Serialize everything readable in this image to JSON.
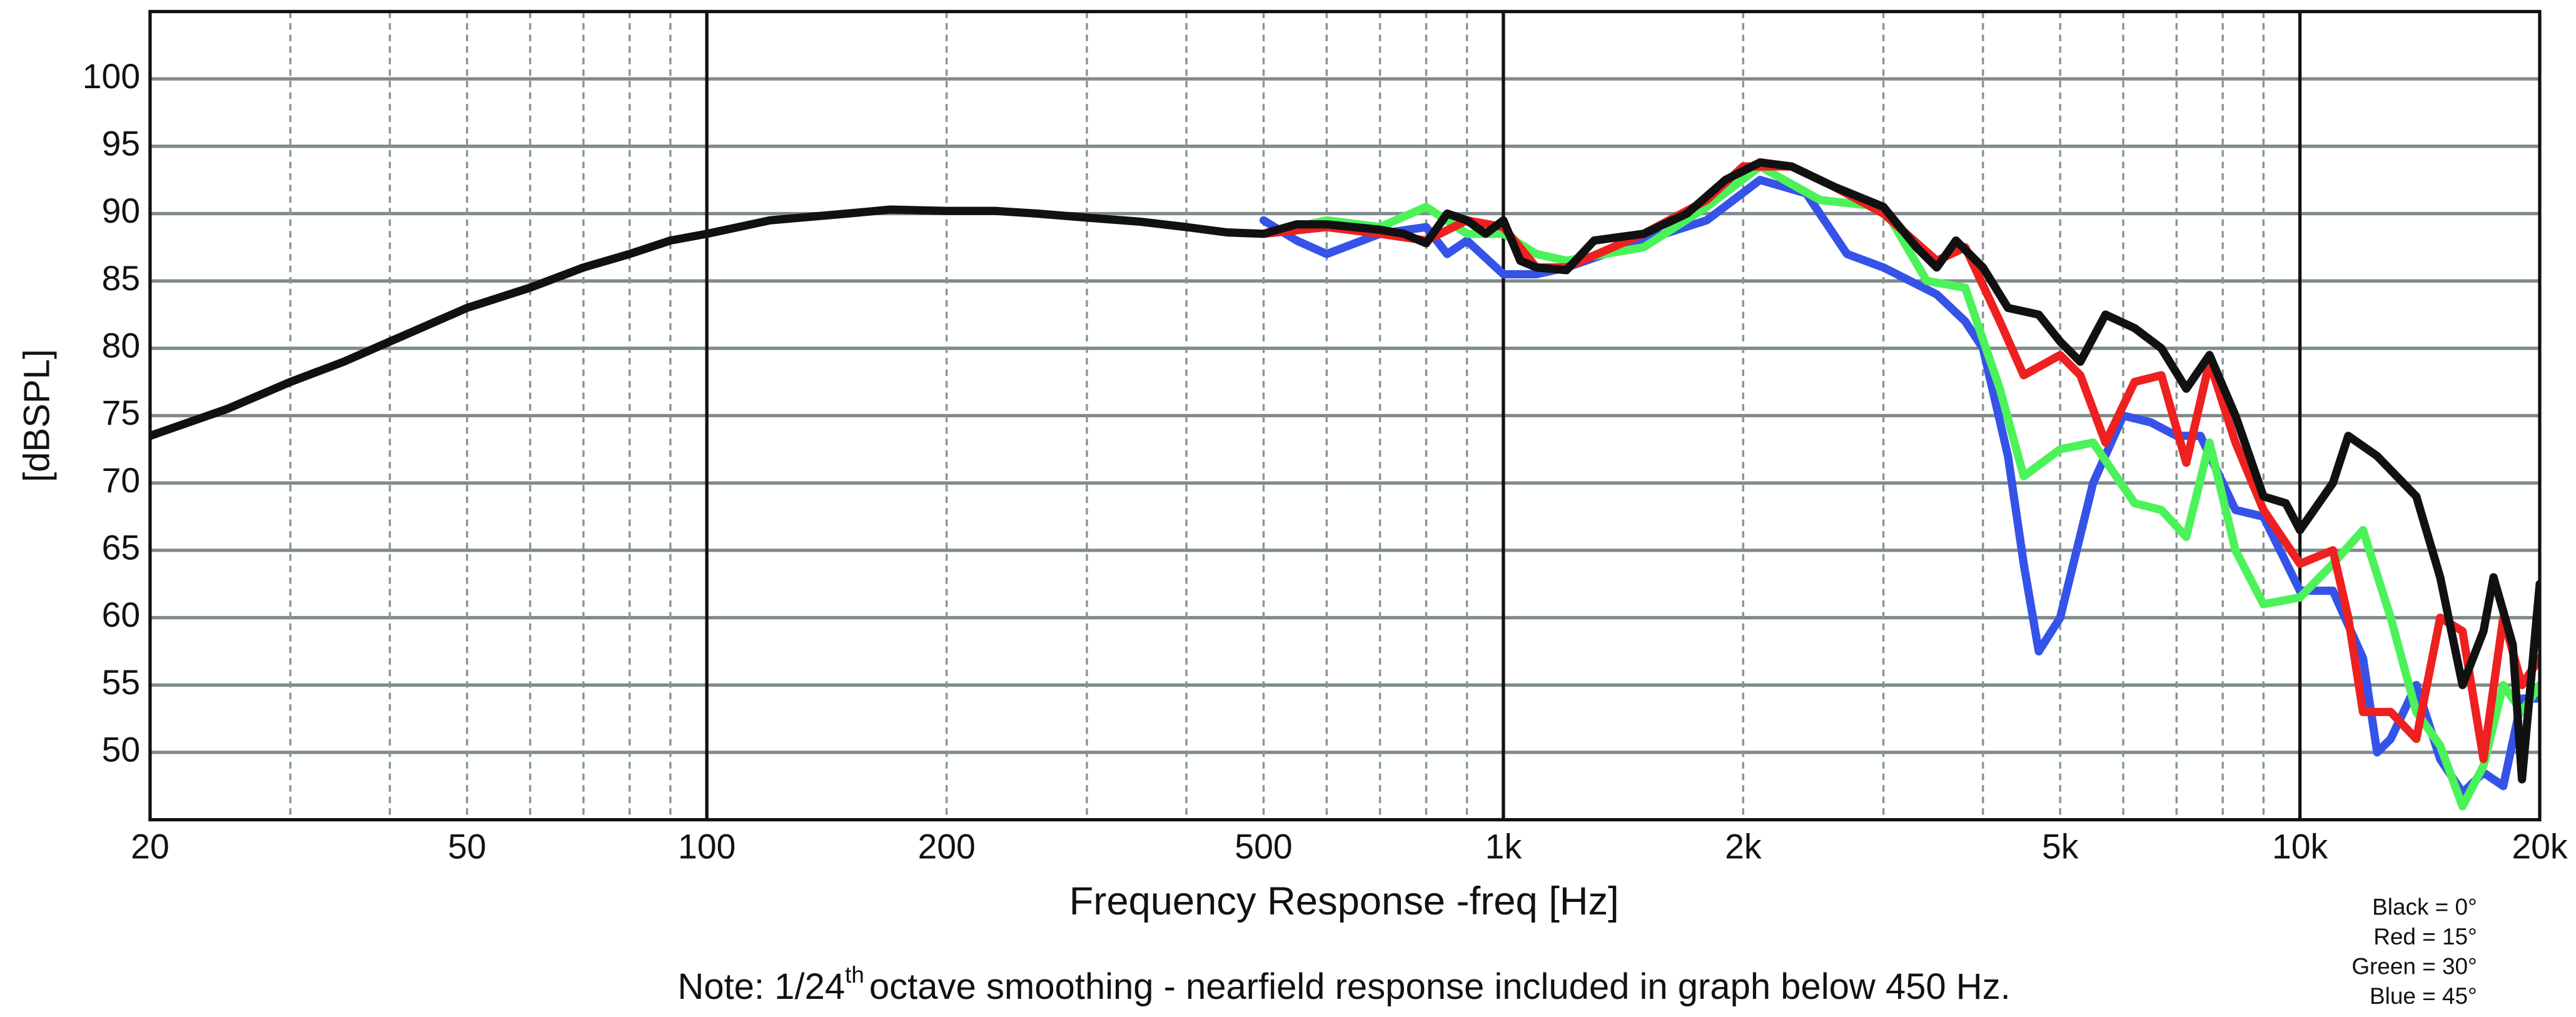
{
  "chart_data": {
    "type": "line",
    "x_label": "Frequency Response -freq [Hz]",
    "y_label": "[dBSPL]",
    "note": {
      "prefix": "Note: 1/24",
      "superscript": "th",
      "suffix": "octave smoothing - nearfield response included in graph below 450 Hz."
    },
    "log_x": true,
    "grid": true,
    "xlim": [
      20,
      20000
    ],
    "ylim": [
      45,
      105
    ],
    "xticks": [
      20,
      50,
      100,
      200,
      500,
      {
        "value": 1000,
        "label": "1k"
      },
      {
        "value": 2000,
        "label": "2k"
      },
      {
        "value": 5000,
        "label": "5k"
      },
      {
        "value": 10000,
        "label": "10k"
      },
      {
        "value": 20000,
        "label": "20k"
      }
    ],
    "x_minor_grid": [
      30,
      40,
      50,
      60,
      70,
      80,
      90,
      200,
      300,
      400,
      500,
      600,
      700,
      800,
      900,
      2000,
      3000,
      4000,
      5000,
      6000,
      7000,
      8000,
      9000
    ],
    "x_major_grid": [
      100,
      1000,
      10000
    ],
    "yticks": [
      50,
      55,
      60,
      65,
      70,
      75,
      80,
      85,
      90,
      95,
      100
    ],
    "legend_position": "lower right",
    "series": [
      {
        "name": "Blue = 45°",
        "color": "#3553e8",
        "x": [
          500,
          550,
          600,
          700,
          800,
          850,
          900,
          1000,
          1100,
          1200,
          1500,
          1800,
          2100,
          2400,
          2700,
          3000,
          3500,
          3800,
          4000,
          4300,
          4500,
          4700,
          5000,
          5500,
          6000,
          6500,
          7000,
          7500,
          8300,
          9000,
          10000,
          11000,
          12000,
          12500,
          13000,
          14000,
          15000,
          16000,
          17000,
          18000,
          19000,
          20000
        ],
        "values": [
          89.5,
          88,
          87,
          88.5,
          89,
          87,
          88,
          85.5,
          85.5,
          86,
          88,
          89.5,
          92.5,
          91.5,
          87,
          86,
          84,
          82,
          80,
          72,
          64,
          57.5,
          60,
          70,
          75,
          74.5,
          73.5,
          73.5,
          68,
          67.5,
          62,
          62,
          57,
          50,
          51,
          55,
          49.5,
          47,
          48.5,
          47.5,
          54,
          54
        ]
      },
      {
        "name": "Green = 30°",
        "color": "#4cf25a",
        "x": [
          500,
          600,
          700,
          800,
          900,
          1000,
          1100,
          1200,
          1500,
          1800,
          2100,
          2500,
          3000,
          3400,
          3800,
          4200,
          4500,
          5000,
          5500,
          6200,
          6700,
          7200,
          7700,
          8300,
          9000,
          10000,
          11000,
          12000,
          13000,
          14000,
          15000,
          16000,
          17000,
          18000,
          19000,
          20000
        ],
        "values": [
          88.5,
          89.5,
          89,
          90.5,
          88.5,
          88.5,
          87,
          86.5,
          87.5,
          90.5,
          93.5,
          91,
          90.5,
          85,
          84.5,
          77,
          70.5,
          72.5,
          73,
          68.5,
          68,
          66,
          73,
          65,
          61,
          61.5,
          64,
          66.5,
          60,
          53,
          50.5,
          46,
          49,
          55,
          53,
          55
        ]
      },
      {
        "name": "Red = 15°",
        "color": "#ee2020",
        "x": [
          500,
          600,
          700,
          800,
          900,
          1000,
          1100,
          1200,
          1500,
          1800,
          2000,
          2300,
          2600,
          3000,
          3500,
          3800,
          4200,
          4500,
          5000,
          5300,
          5700,
          6200,
          6700,
          7200,
          7700,
          8300,
          9000,
          10000,
          11000,
          11500,
          12000,
          13000,
          14000,
          15000,
          16000,
          17000,
          18000,
          19000,
          20000
        ],
        "values": [
          88.5,
          89,
          88.5,
          88,
          89.5,
          89,
          86,
          86,
          88.5,
          91,
          93.5,
          93.5,
          92,
          90,
          86.5,
          87.5,
          82,
          78,
          79.5,
          78,
          73,
          77.5,
          78,
          71.5,
          79,
          73,
          68,
          64,
          65,
          60,
          53,
          53,
          51,
          60,
          59,
          49.5,
          60,
          55,
          57
        ]
      },
      {
        "name": "Black = 0°",
        "color": "#111111",
        "x": [
          20,
          25,
          30,
          35,
          40,
          50,
          60,
          70,
          80,
          90,
          100,
          120,
          150,
          170,
          200,
          230,
          260,
          300,
          350,
          400,
          450,
          500,
          550,
          600,
          700,
          750,
          800,
          850,
          900,
          950,
          1000,
          1050,
          1100,
          1200,
          1300,
          1500,
          1700,
          1900,
          2100,
          2300,
          2600,
          3000,
          3300,
          3500,
          3700,
          4000,
          4300,
          4700,
          5000,
          5300,
          5700,
          6200,
          6700,
          7200,
          7700,
          8300,
          9000,
          9600,
          10000,
          11000,
          11500,
          12500,
          14000,
          15000,
          16000,
          17000,
          17500,
          18500,
          19000,
          20000
        ],
        "values": [
          73.5,
          75.5,
          77.5,
          79,
          80.5,
          83,
          84.5,
          86,
          87,
          88,
          88.5,
          89.5,
          90,
          90.3,
          90.2,
          90.2,
          90,
          89.7,
          89.4,
          89,
          88.6,
          88.5,
          89.2,
          89.2,
          88.8,
          88.5,
          87.8,
          90,
          89.5,
          88.5,
          89.5,
          86.5,
          86,
          85.8,
          88,
          88.5,
          90,
          92.5,
          93.8,
          93.5,
          92,
          90.5,
          87.5,
          86,
          88,
          86,
          83,
          82.5,
          80.5,
          79,
          82.5,
          81.5,
          80,
          77,
          79.5,
          75,
          69,
          68.5,
          66.5,
          70,
          73.5,
          72,
          69,
          63,
          55,
          59,
          63,
          58,
          48,
          62.5
        ]
      }
    ]
  }
}
